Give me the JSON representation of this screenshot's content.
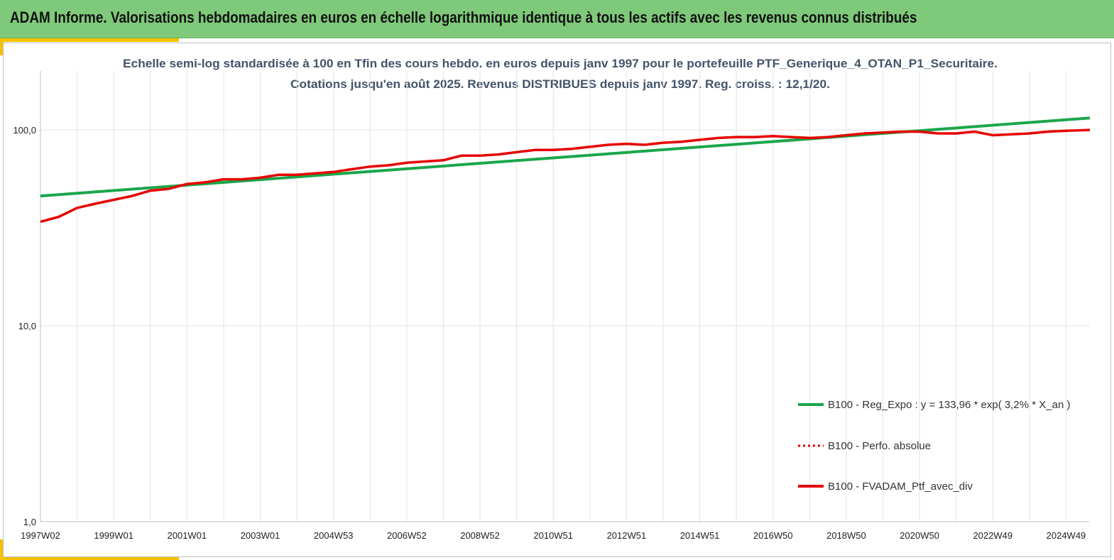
{
  "header": {
    "title": "ADAM Informe. Valorisations hebdomadaires en euros en échelle logarithmique identique à tous les actifs avec les revenus connus distribués"
  },
  "colors": {
    "header_bg": "#7fc97a",
    "accent": "#f5c100",
    "regression_line": "#1aa64b",
    "portfolio_line": "#e60000",
    "perfo_dotted": "#e60000",
    "title_text": "#44546a",
    "axis_text": "#222222",
    "grid": "#e3e3e3"
  },
  "chart_data": {
    "type": "line",
    "title_line1": "Echelle semi-log standardisée à 100 en Tfin des cours hebdo.  en euros depuis janv 1997 pour le portefeuille PTF_Generique_4_OTAN_P1_Securitaire.",
    "title_line2": "Cotations  jusqu'en août 2025. Revenus DISTRIBUES depuis janv 1997. Reg. croiss. : 12,1/20.",
    "y_scale": "log",
    "ylim": [
      1,
      200
    ],
    "y_ticks": [
      {
        "value": 1,
        "label": "1,0"
      },
      {
        "value": 10,
        "label": "10,0"
      },
      {
        "value": 100,
        "label": "100,0"
      }
    ],
    "x_range": [
      1997.0,
      2025.65
    ],
    "x_ticks": [
      {
        "x": 1997.0,
        "label": "1997W02"
      },
      {
        "x": 1999.0,
        "label": "1999W01"
      },
      {
        "x": 2001.0,
        "label": "2001W01"
      },
      {
        "x": 2003.0,
        "label": "2003W01"
      },
      {
        "x": 2005.0,
        "label": "2004W53"
      },
      {
        "x": 2007.0,
        "label": "2006W52"
      },
      {
        "x": 2009.0,
        "label": "2008W52"
      },
      {
        "x": 2011.0,
        "label": "2010W51"
      },
      {
        "x": 2013.0,
        "label": "2012W51"
      },
      {
        "x": 2015.0,
        "label": "2014W51"
      },
      {
        "x": 2017.0,
        "label": "2016W50"
      },
      {
        "x": 2019.0,
        "label": "2018W50"
      },
      {
        "x": 2021.0,
        "label": "2020W50"
      },
      {
        "x": 2023.0,
        "label": "2022W49"
      },
      {
        "x": 2025.0,
        "label": "2024W49"
      }
    ],
    "grid": "vertical",
    "legend_position": "right",
    "legend": [
      {
        "key": "regression",
        "label": "B100 - Reg_Expo : y = 133,96 * exp( 3,2% *  X_an )",
        "style": "solid"
      },
      {
        "key": "perfo",
        "label": "B100 - Perfo. absolue",
        "style": "dotted"
      },
      {
        "key": "portfolio",
        "label": "B100 - FVADAM_Ptf_avec_div",
        "style": "solid"
      }
    ],
    "series": [
      {
        "key": "regression",
        "x": [
          1997.0,
          2025.65
        ],
        "values": [
          46,
          115
        ]
      },
      {
        "key": "portfolio",
        "x": [
          1997.0,
          1997.5,
          1998.0,
          1998.5,
          1999.0,
          1999.5,
          2000.0,
          2000.5,
          2001.0,
          2001.5,
          2002.0,
          2002.5,
          2003.0,
          2003.5,
          2004.0,
          2004.5,
          2005.0,
          2005.5,
          2006.0,
          2006.5,
          2007.0,
          2007.5,
          2008.0,
          2008.5,
          2009.0,
          2009.5,
          2010.0,
          2010.5,
          2011.0,
          2011.5,
          2012.0,
          2012.5,
          2013.0,
          2013.5,
          2014.0,
          2014.5,
          2015.0,
          2015.5,
          2016.0,
          2016.5,
          2017.0,
          2017.5,
          2018.0,
          2018.5,
          2019.0,
          2019.5,
          2020.0,
          2020.5,
          2021.0,
          2021.5,
          2022.0,
          2022.5,
          2023.0,
          2023.5,
          2024.0,
          2024.5,
          2025.0,
          2025.65
        ],
        "values": [
          34,
          36,
          40,
          42,
          44,
          46,
          49,
          50,
          53,
          54,
          56,
          56,
          57,
          59,
          59,
          60,
          61,
          63,
          65,
          66,
          68,
          69,
          70,
          74,
          74,
          75,
          77,
          79,
          79,
          80,
          82,
          84,
          85,
          84,
          86,
          87,
          89,
          91,
          92,
          92,
          93,
          92,
          91,
          92,
          94,
          96,
          97,
          98,
          98,
          96,
          96,
          98,
          94,
          95,
          96,
          98,
          99,
          100
        ]
      }
    ]
  }
}
